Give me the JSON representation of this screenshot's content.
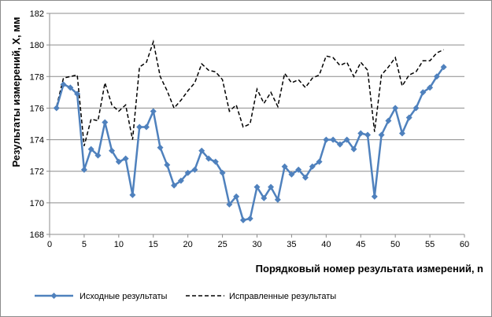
{
  "chart_data": {
    "type": "line",
    "title": "",
    "xlabel": "Порядковый номер результата измерений, n",
    "ylabel": "Результаты измерений, X, мм",
    "xlim": [
      0,
      60
    ],
    "ylim": [
      168,
      182
    ],
    "x_ticks": [
      0,
      5,
      10,
      15,
      20,
      25,
      30,
      35,
      40,
      45,
      50,
      55,
      60
    ],
    "y_ticks": [
      168,
      170,
      172,
      174,
      176,
      178,
      180,
      182
    ],
    "grid": "horizontal",
    "legend_position": "bottom",
    "x": [
      1,
      2,
      3,
      4,
      5,
      6,
      7,
      8,
      9,
      10,
      11,
      12,
      13,
      14,
      15,
      16,
      17,
      18,
      19,
      20,
      21,
      22,
      23,
      24,
      25,
      26,
      27,
      28,
      29,
      30,
      31,
      32,
      33,
      34,
      35,
      36,
      37,
      38,
      39,
      40,
      41,
      42,
      43,
      44,
      45,
      46,
      47,
      48,
      49,
      50,
      51,
      52,
      53,
      54,
      55,
      56,
      57
    ],
    "series": [
      {
        "name": "Исходные результаты",
        "color": "#4f81bd",
        "style": "solid-diamond",
        "values": [
          176.0,
          177.5,
          177.3,
          176.9,
          172.1,
          173.4,
          173.0,
          175.1,
          173.3,
          172.6,
          172.8,
          170.5,
          174.8,
          174.8,
          175.8,
          173.5,
          172.4,
          171.1,
          171.4,
          171.9,
          172.1,
          173.3,
          172.8,
          172.6,
          171.9,
          169.9,
          170.4,
          168.9,
          169.0,
          171.0,
          170.3,
          171.0,
          170.2,
          172.3,
          171.8,
          172.1,
          171.6,
          172.3,
          172.6,
          174.0,
          174.0,
          173.7,
          174.0,
          173.4,
          174.4,
          174.3,
          170.4,
          174.3,
          175.2,
          176.0,
          174.4,
          175.4,
          176.0,
          177.0,
          177.3,
          178.0,
          178.6
        ]
      },
      {
        "name": "Исправленные результаты",
        "color": "#000000",
        "style": "dashed",
        "values": [
          176.1,
          177.9,
          178.0,
          178.1,
          173.6,
          175.3,
          175.2,
          177.6,
          176.2,
          175.8,
          176.2,
          174.0,
          178.6,
          178.9,
          180.2,
          178.0,
          177.1,
          176.0,
          176.5,
          177.1,
          177.6,
          178.8,
          178.4,
          178.3,
          177.8,
          175.8,
          176.2,
          174.8,
          175.0,
          177.2,
          176.3,
          177.0,
          176.1,
          178.2,
          177.6,
          177.8,
          177.3,
          177.9,
          178.1,
          179.3,
          179.2,
          178.7,
          178.9,
          178.0,
          178.9,
          178.4,
          174.5,
          178.1,
          178.6,
          179.2,
          177.4,
          178.1,
          178.3,
          179.0,
          179.0,
          179.5,
          179.7
        ]
      }
    ]
  }
}
